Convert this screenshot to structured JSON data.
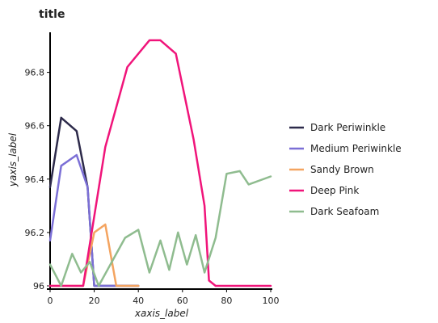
{
  "chart_data": {
    "type": "line",
    "title": "title",
    "xlabel": "xaxis_label",
    "ylabel": "yaxis_label",
    "xlim": [
      0,
      100
    ],
    "ylim": [
      96.0,
      96.95
    ],
    "x_ticks": [
      0,
      20,
      40,
      60,
      80,
      100
    ],
    "y_ticks": [
      96,
      96.2,
      96.4,
      96.6,
      96.8
    ],
    "grid": false,
    "legend_position": "right",
    "series": [
      {
        "name": "Dark Periwinkle",
        "color": "#2d2a4a",
        "points": [
          [
            0,
            96.37
          ],
          [
            5,
            96.63
          ],
          [
            12,
            96.58
          ],
          [
            17,
            96.37
          ],
          [
            20,
            96.0
          ],
          [
            40,
            96.0
          ]
        ]
      },
      {
        "name": "Medium Periwinkle",
        "color": "#7b6fd6",
        "points": [
          [
            0,
            96.17
          ],
          [
            5,
            96.45
          ],
          [
            12,
            96.49
          ],
          [
            17,
            96.37
          ],
          [
            20,
            96.0
          ],
          [
            40,
            96.0
          ]
        ]
      },
      {
        "name": "Sandy Brown",
        "color": "#f4a460",
        "points": [
          [
            0,
            96.0
          ],
          [
            5,
            96.0
          ],
          [
            15,
            96.0
          ],
          [
            20,
            96.2
          ],
          [
            25,
            96.23
          ],
          [
            30,
            96.0
          ],
          [
            40,
            96.0
          ]
        ]
      },
      {
        "name": "Deep Pink",
        "color": "#f0147a",
        "points": [
          [
            0,
            96.0
          ],
          [
            15,
            96.0
          ],
          [
            25,
            96.52
          ],
          [
            35,
            96.82
          ],
          [
            45,
            96.92
          ],
          [
            50,
            96.92
          ],
          [
            57,
            96.87
          ],
          [
            65,
            96.55
          ],
          [
            70,
            96.3
          ],
          [
            72,
            96.02
          ],
          [
            75,
            96.0
          ],
          [
            100,
            96.0
          ]
        ]
      },
      {
        "name": "Dark Seafoam",
        "color": "#8fbc8f",
        "points": [
          [
            0,
            96.08
          ],
          [
            5,
            96.0
          ],
          [
            10,
            96.12
          ],
          [
            14,
            96.05
          ],
          [
            18,
            96.09
          ],
          [
            22,
            96.0
          ],
          [
            34,
            96.18
          ],
          [
            40,
            96.21
          ],
          [
            45,
            96.05
          ],
          [
            50,
            96.17
          ],
          [
            54,
            96.06
          ],
          [
            58,
            96.2
          ],
          [
            62,
            96.08
          ],
          [
            66,
            96.19
          ],
          [
            70,
            96.05
          ],
          [
            75,
            96.18
          ],
          [
            80,
            96.42
          ],
          [
            86,
            96.43
          ],
          [
            90,
            96.38
          ],
          [
            100,
            96.41
          ]
        ]
      }
    ]
  }
}
